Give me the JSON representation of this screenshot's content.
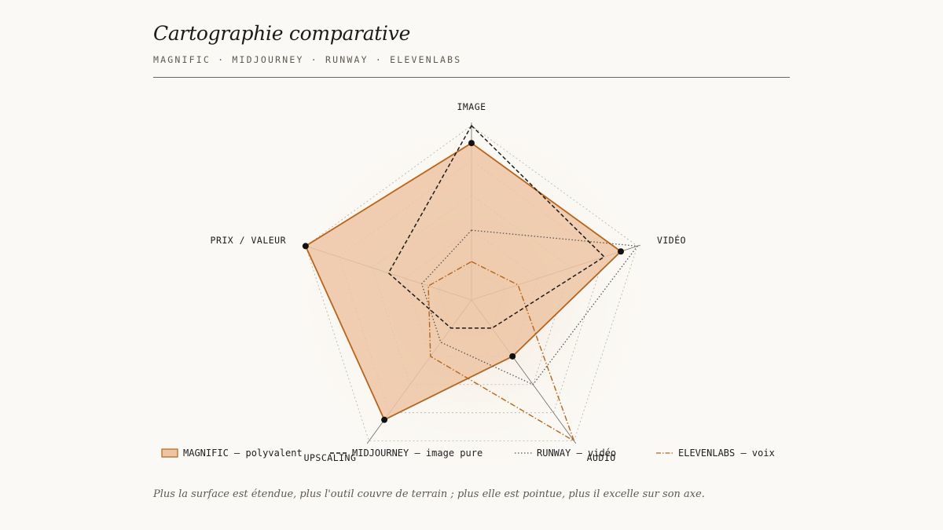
{
  "header": {
    "title": "Cartographie comparative",
    "subtitle": "MAGNIFIC · MIDJOURNEY · RUNWAY · ELEVENLABS"
  },
  "footnote": "Plus la surface est étendue, plus l'outil couvre de terrain ; plus elle est pointue, plus il excelle sur son axe.",
  "chart_data": {
    "type": "radar",
    "axes": [
      "IMAGE",
      "VIDÉO",
      "AUDIO",
      "UPSCALING",
      "PRIX / VALEUR"
    ],
    "rmax": 10,
    "rings": 5,
    "series": [
      {
        "id": "magnific",
        "name": "MAGNIFIC — polyvalent",
        "values": [
          9,
          9,
          4,
          8.5,
          10
        ],
        "color": "#b5651d",
        "fill": "#edc5a5",
        "style": "solid-filled",
        "markers": true
      },
      {
        "id": "midjourney",
        "name": "MIDJOURNEY — image pure",
        "values": [
          10,
          8,
          2,
          2,
          5
        ],
        "color": "#1b1b1b",
        "style": "dashed"
      },
      {
        "id": "runway",
        "name": "RUNWAY — vidéo",
        "values": [
          4,
          10,
          6,
          3,
          3
        ],
        "color": "#555555",
        "style": "dotted"
      },
      {
        "id": "elevenlabs",
        "name": "ELEVENLABS — voix",
        "values": [
          2.2,
          2.8,
          10,
          4,
          2.6
        ],
        "color": "#b5651d",
        "style": "dash-dot"
      }
    ]
  }
}
